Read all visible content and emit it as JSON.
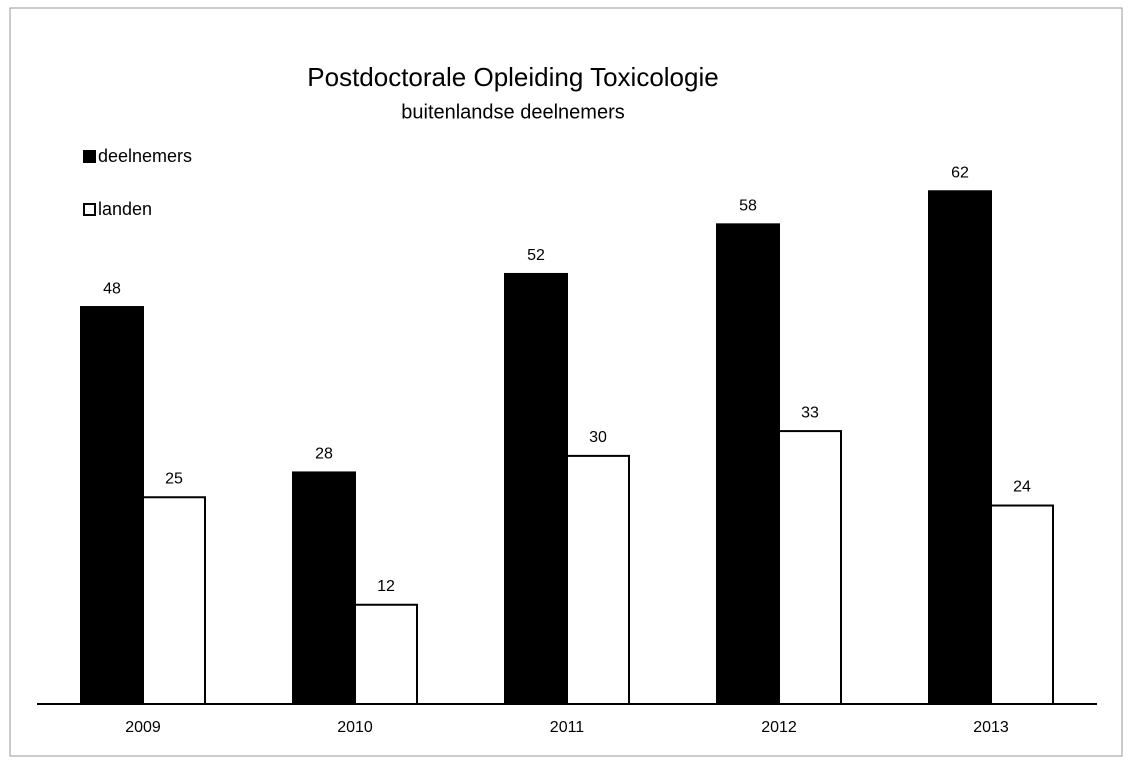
{
  "chart_data": {
    "type": "bar",
    "title": "Postdoctorale Opleiding Toxicologie",
    "subtitle": "buitenlandse deelnemers",
    "categories": [
      "2009",
      "2010",
      "2011",
      "2012",
      "2013"
    ],
    "series": [
      {
        "name": "deelnemers",
        "color": "#000000",
        "values": [
          48,
          28,
          52,
          58,
          62
        ]
      },
      {
        "name": "landen",
        "color": "#ffffff",
        "values": [
          25,
          12,
          30,
          33,
          24
        ]
      }
    ],
    "legend": "top-left"
  }
}
